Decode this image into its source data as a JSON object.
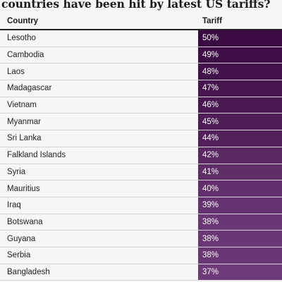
{
  "title": "countries have been hit by latest US tariffs?",
  "chart_data": {
    "type": "table",
    "columns": [
      "Country",
      "Tariff"
    ],
    "rows": [
      {
        "country": "Lesotho",
        "tariff": "50%",
        "value": 50
      },
      {
        "country": "Cambodia",
        "tariff": "49%",
        "value": 49
      },
      {
        "country": "Laos",
        "tariff": "48%",
        "value": 48
      },
      {
        "country": "Madagascar",
        "tariff": "47%",
        "value": 47
      },
      {
        "country": "Vietnam",
        "tariff": "46%",
        "value": 46
      },
      {
        "country": "Myanmar",
        "tariff": "45%",
        "value": 45
      },
      {
        "country": "Sri Lanka",
        "tariff": "44%",
        "value": 44
      },
      {
        "country": "Falkland Islands",
        "tariff": "42%",
        "value": 42
      },
      {
        "country": "Syria",
        "tariff": "41%",
        "value": 41
      },
      {
        "country": "Mauritius",
        "tariff": "40%",
        "value": 40
      },
      {
        "country": "Iraq",
        "tariff": "39%",
        "value": 39
      },
      {
        "country": "Botswana",
        "tariff": "38%",
        "value": 38
      },
      {
        "country": "Guyana",
        "tariff": "38%",
        "value": 38
      },
      {
        "country": "Serbia",
        "tariff": "38%",
        "value": 38
      },
      {
        "country": "Bangladesh",
        "tariff": "37%",
        "value": 37
      }
    ],
    "color_scale": {
      "max_color": "#3a0b42",
      "min_color": "#6e3a78"
    }
  }
}
